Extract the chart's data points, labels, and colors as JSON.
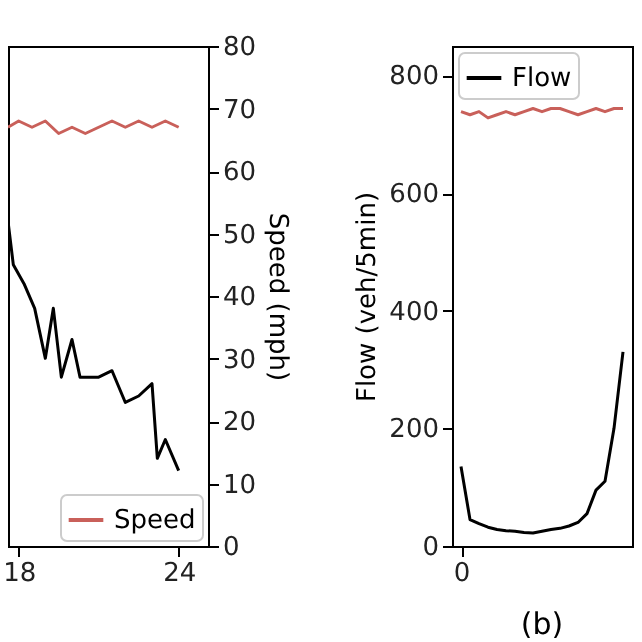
{
  "chart_data": [
    {
      "type": "line",
      "xlim": [
        17.6,
        25.1
      ],
      "xticks": [
        18,
        24
      ],
      "ylim": [
        0,
        850
      ],
      "y2label": "Speed (mph)",
      "y2lim": [
        0,
        80
      ],
      "y2ticks": [
        0,
        10,
        20,
        30,
        40,
        50,
        60,
        70,
        80
      ],
      "legend": "bottom right",
      "grid": false,
      "series": [
        {
          "color": "#000000",
          "x": [
            17.6,
            17.8,
            18.2,
            18.6,
            19.0,
            19.3,
            19.6,
            20.0,
            20.3,
            21.0,
            21.5,
            22.0,
            22.5,
            23.0,
            23.2,
            23.5,
            24.0
          ],
          "values": [
            552,
            478,
            446,
            404,
            319,
            404,
            287,
            351,
            287,
            287,
            298,
            244,
            255,
            276,
            149,
            181,
            128
          ]
        },
        {
          "name": "Speed",
          "color": "#c9605a",
          "axis": "y2",
          "x": [
            17.6,
            18.0,
            18.5,
            19.0,
            19.5,
            20.0,
            20.5,
            21.0,
            21.5,
            22.0,
            22.5,
            23.0,
            23.5,
            24.0
          ],
          "values": [
            67,
            68,
            67,
            68,
            66,
            67,
            66,
            67,
            68,
            67,
            68,
            67,
            68,
            67
          ]
        }
      ]
    },
    {
      "type": "line",
      "categories": [
        "0",
        null,
        null,
        null,
        null,
        null,
        null,
        null,
        null,
        null,
        null,
        null,
        null,
        null,
        null,
        null,
        null,
        null,
        null
      ],
      "ylabel": "Flow (veh/5min)",
      "ylim": [
        0,
        850
      ],
      "yticks": [
        0,
        200,
        400,
        600,
        800
      ],
      "y2lim": [
        0,
        80
      ],
      "tick_labels": "xy",
      "legend": "top left",
      "grid": false,
      "annotations": [
        "(b)"
      ],
      "series": [
        {
          "name": "Flow",
          "color": "#000000",
          "values": [
            135,
            45,
            38,
            32,
            28,
            26,
            25,
            23,
            22,
            25,
            28,
            30,
            34,
            40,
            55,
            95,
            110,
            200,
            330
          ]
        },
        {
          "color": "#c9605a",
          "axis": "y2",
          "values": [
            69.5,
            69,
            69.5,
            68.5,
            69,
            69.5,
            69,
            69.5,
            70,
            69.5,
            70,
            70,
            69.5,
            69,
            69.5,
            70,
            69.5,
            70,
            70
          ]
        }
      ]
    }
  ]
}
